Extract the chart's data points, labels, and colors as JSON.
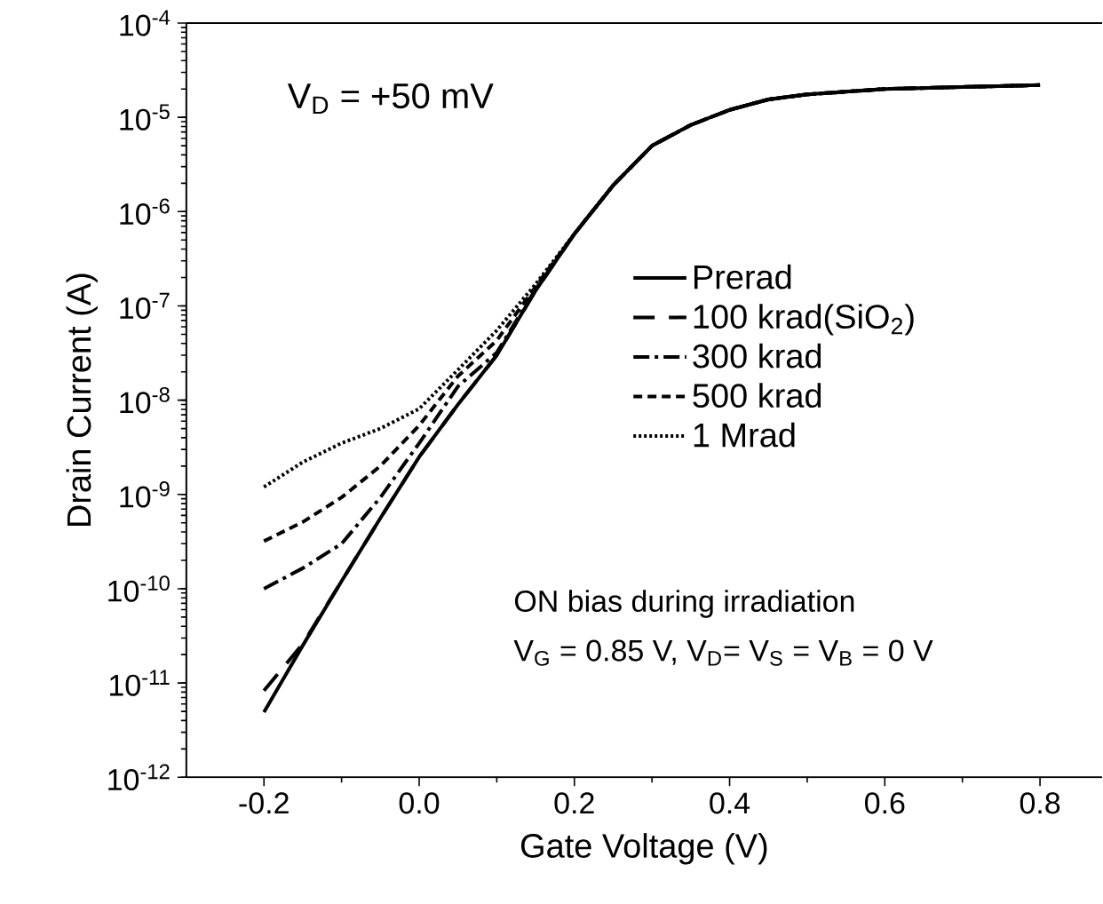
{
  "chart_data": {
    "type": "line",
    "xlabel": "Gate Voltage (V)",
    "ylabel": "Drain Current (A)",
    "log": "y",
    "xlim": [
      -0.3,
      0.88
    ],
    "ylim": [
      1e-12,
      0.0001
    ],
    "xticks": [
      {
        "value": -0.2,
        "label": "-0.2"
      },
      {
        "value": 0,
        "label": "0.0"
      },
      {
        "value": 0.2,
        "label": "0.2"
      },
      {
        "value": 0.4,
        "label": "0.4"
      },
      {
        "value": 0.6,
        "label": "0.6"
      },
      {
        "value": 0.8,
        "label": "0.8"
      }
    ],
    "yticks": [
      {
        "value": 1e-12,
        "label": "10$^{-12}$"
      },
      {
        "value": 1e-11,
        "label": "10$^{-11}$"
      },
      {
        "value": 1e-10,
        "label": "10$^{-10}$"
      },
      {
        "value": 1e-09,
        "label": "10$^{-9}$"
      },
      {
        "value": 1e-08,
        "label": "10$^{-8}$"
      },
      {
        "value": 1e-07,
        "label": "10$^{-7}$"
      },
      {
        "value": 1e-06,
        "label": "10$^{-6}$"
      },
      {
        "value": 1e-05,
        "label": "10$^{-5}$"
      },
      {
        "value": 0.0001,
        "label": "10$^{-4}$"
      }
    ],
    "legend": "right",
    "grid": false,
    "annotations": [
      "V$_{D}$ = +50 mV",
      "ON bias during irradiation",
      "V$_{G}$ = 0.85 V, V$_{D}$= V$_{S}$ = V$_{B}$ = 0 V"
    ],
    "x": [
      -0.2,
      -0.15,
      -0.1,
      -0.05,
      0.0,
      0.05,
      0.1,
      0.15,
      0.2,
      0.25,
      0.3,
      0.35,
      0.4,
      0.45,
      0.5,
      0.6,
      0.7,
      0.8
    ],
    "series": [
      {
        "name": "Prerad",
        "color": "#000000",
        "line_style": "solid",
        "values": [
          4.9e-12,
          2.5e-11,
          1.2e-10,
          5.6e-10,
          2.5e-09,
          9e-09,
          3e-08,
          1.45e-07,
          5.8e-07,
          1.9e-06,
          5e-06,
          8.3e-06,
          1.2e-05,
          1.55e-05,
          1.75e-05,
          2e-05,
          2.1e-05,
          2.2e-05
        ]
      },
      {
        "name": "100 krad(SiO$_{2}$)",
        "color": "#000000",
        "line_style": "long dashed",
        "values": [
          8.3e-12,
          2.6e-11,
          1.2e-10,
          5.6e-10,
          2.5e-09,
          9e-09,
          3e-08,
          1.45e-07,
          5.8e-07,
          1.9e-06,
          5e-06,
          8.3e-06,
          1.2e-05,
          1.55e-05,
          1.75e-05,
          2e-05,
          2.1e-05,
          2.2e-05
        ]
      },
      {
        "name": "300 krad",
        "color": "#000000",
        "line_style": "dashdot",
        "values": [
          1e-10,
          1.65e-10,
          3e-10,
          9.3e-10,
          3.5e-09,
          1.4e-08,
          3.2e-08,
          1.5e-07,
          5.8e-07,
          1.9e-06,
          5e-06,
          8.3e-06,
          1.2e-05,
          1.55e-05,
          1.75e-05,
          2e-05,
          2.1e-05,
          2.2e-05
        ]
      },
      {
        "name": "500 krad",
        "color": "#000000",
        "line_style": "dashed",
        "values": [
          3.2e-10,
          5.1e-10,
          9.3e-10,
          2e-09,
          5.4e-09,
          1.8e-08,
          4.3e-08,
          1.6e-07,
          5.8e-07,
          1.9e-06,
          5e-06,
          8.3e-06,
          1.2e-05,
          1.55e-05,
          1.75e-05,
          2e-05,
          2.1e-05,
          2.2e-05
        ]
      },
      {
        "name": "1 Mrad",
        "color": "#000000",
        "line_style": "dotted",
        "values": [
          1.2e-09,
          2.2e-09,
          3.5e-09,
          5e-09,
          8.1e-09,
          2.1e-08,
          5.5e-08,
          1.7e-07,
          5.8e-07,
          1.9e-06,
          5e-06,
          8.3e-06,
          1.2e-05,
          1.55e-05,
          1.75e-05,
          2e-05,
          2.1e-05,
          2.2e-05
        ]
      }
    ]
  }
}
